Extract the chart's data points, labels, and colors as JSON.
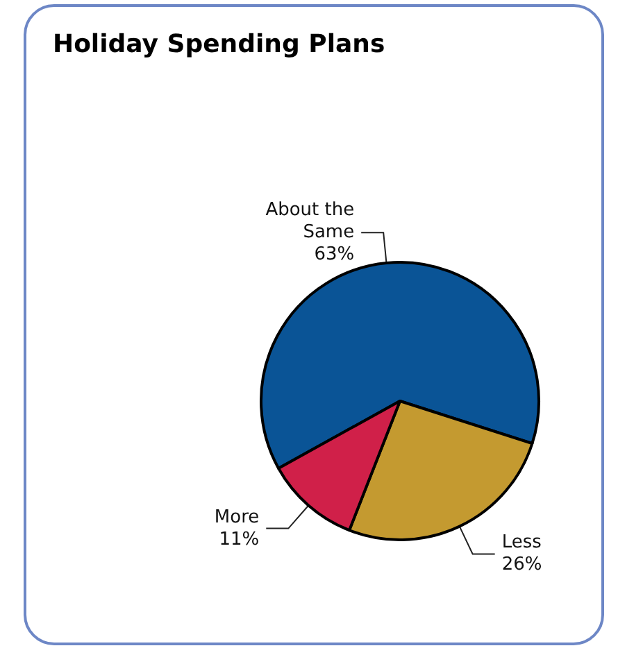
{
  "chart_data": {
    "type": "pie",
    "title": "Holiday Spending Plans",
    "categories": [
      "About the Same",
      "Less",
      "More"
    ],
    "values": [
      63,
      26,
      11
    ],
    "value_labels": [
      "63%",
      "26%",
      "11%"
    ],
    "colors": [
      "#0a5496",
      "#c49a30",
      "#d02049"
    ],
    "legend": false
  }
}
